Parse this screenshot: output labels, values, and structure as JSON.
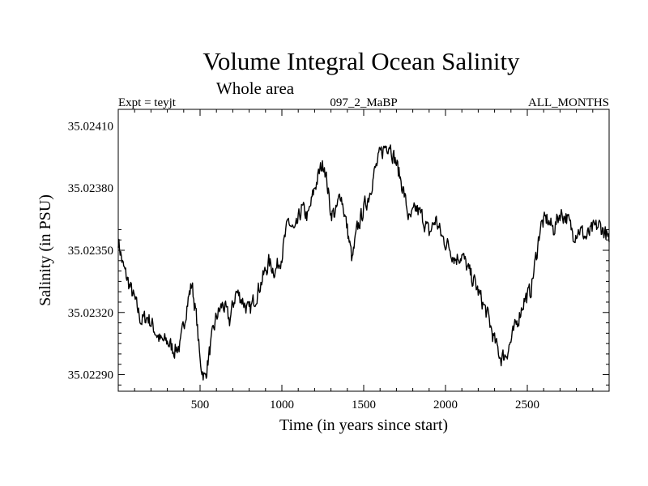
{
  "chart_data": {
    "type": "line",
    "title": "Volume Integral Ocean Salinity",
    "subtitle": "Whole area",
    "header_left": "Expt = teyjt",
    "header_center": "097_2_MaBP",
    "header_right": "ALL_MONTHS",
    "xlabel": "Time (in years since start)",
    "ylabel": "Salinity (in PSU)",
    "xlim": [
      0,
      3000
    ],
    "ylim": [
      35.02282,
      35.02418
    ],
    "xticks": [
      500,
      1000,
      1500,
      2000,
      2500
    ],
    "xtick_labels": [
      "500",
      "1000",
      "1500",
      "2000",
      "2500"
    ],
    "yticks": [
      35.0229,
      35.0232,
      35.0235,
      35.0238,
      35.0241
    ],
    "ytick_labels": [
      "35.02290",
      "35.02320",
      "35.02350",
      "35.02380",
      "35.02410"
    ],
    "grid": false,
    "series": [
      {
        "name": "Salinity",
        "color": "#000000",
        "x": [
          0,
          30,
          60,
          100,
          140,
          180,
          220,
          260,
          300,
          340,
          380,
          420,
          450,
          480,
          500,
          530,
          560,
          600,
          640,
          680,
          720,
          760,
          800,
          840,
          880,
          920,
          960,
          1000,
          1040,
          1080,
          1120,
          1160,
          1200,
          1240,
          1260,
          1280,
          1300,
          1330,
          1360,
          1400,
          1430,
          1460,
          1500,
          1530,
          1560,
          1600,
          1630,
          1660,
          1680,
          1700,
          1740,
          1780,
          1820,
          1860,
          1900,
          1940,
          1980,
          2020,
          2060,
          2100,
          2140,
          2180,
          2220,
          2260,
          2300,
          2340,
          2370,
          2400,
          2440,
          2480,
          2520,
          2560,
          2580,
          2620,
          2660,
          2700,
          2740,
          2780,
          2820,
          2860,
          2900,
          2940,
          2980,
          3000
        ],
        "values": [
          35.02355,
          35.02342,
          35.02335,
          35.02326,
          35.02316,
          35.02318,
          35.02312,
          35.02306,
          35.02306,
          35.02302,
          35.02304,
          35.02324,
          35.02334,
          35.02316,
          35.02296,
          35.02288,
          35.02302,
          35.02318,
          35.02324,
          35.02316,
          35.0233,
          35.02326,
          35.0232,
          35.02328,
          35.02336,
          35.02344,
          35.0234,
          35.02348,
          35.02364,
          35.02358,
          35.0237,
          35.02366,
          35.0238,
          35.0239,
          35.02392,
          35.0238,
          35.02368,
          35.02368,
          35.02378,
          35.0236,
          35.02345,
          35.0236,
          35.0237,
          35.02376,
          35.02386,
          35.02396,
          35.024,
          35.02402,
          35.02396,
          35.02392,
          35.0238,
          35.02364,
          35.0237,
          35.02366,
          35.02358,
          35.02365,
          35.02356,
          35.02352,
          35.02346,
          35.02348,
          35.0234,
          35.02334,
          35.02326,
          35.02318,
          35.02306,
          35.02298,
          35.023,
          35.02306,
          35.02316,
          35.02326,
          35.0233,
          35.0235,
          35.02362,
          35.02365,
          35.0236,
          35.02368,
          35.02366,
          35.02358,
          35.0236,
          35.02356,
          35.0236,
          35.02362,
          35.02358,
          35.02354
        ]
      }
    ]
  }
}
